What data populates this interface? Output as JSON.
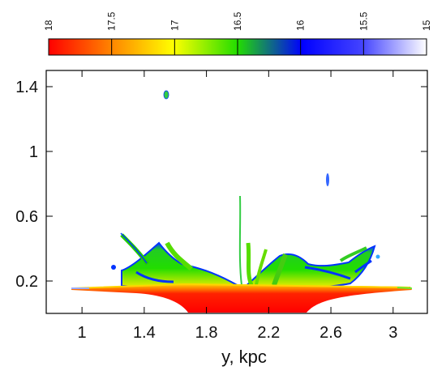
{
  "chart_data": {
    "type": "heatmap",
    "title": "",
    "xlabel": "y, kpc",
    "ylabel": "",
    "xlim": [
      0.77,
      3.22
    ],
    "ylim": [
      0.0,
      1.5
    ],
    "x_ticks": [
      1,
      1.4,
      1.8,
      2.2,
      2.6,
      3
    ],
    "x_tick_labels": [
      "1",
      "1.4",
      "1.8",
      "2.2",
      "2.6",
      "3"
    ],
    "y_ticks": [
      0.2,
      0.6,
      1,
      1.4
    ],
    "y_tick_labels": [
      "0.2",
      "0.6",
      "1",
      "1.4"
    ],
    "grid": false,
    "colorbar": {
      "orientation": "horizontal",
      "placement": "top",
      "range": [
        18,
        15
      ],
      "ticks": [
        18,
        17.5,
        17,
        16.5,
        16,
        15.5,
        15
      ],
      "tick_labels": [
        "18",
        "17.5",
        "17",
        "16.5",
        "16",
        "15.5",
        "15"
      ],
      "colors": [
        "#ff0000",
        "#ff8800",
        "#ffff00",
        "#22dd00",
        "#0000ff",
        "#ffffff"
      ]
    }
  }
}
